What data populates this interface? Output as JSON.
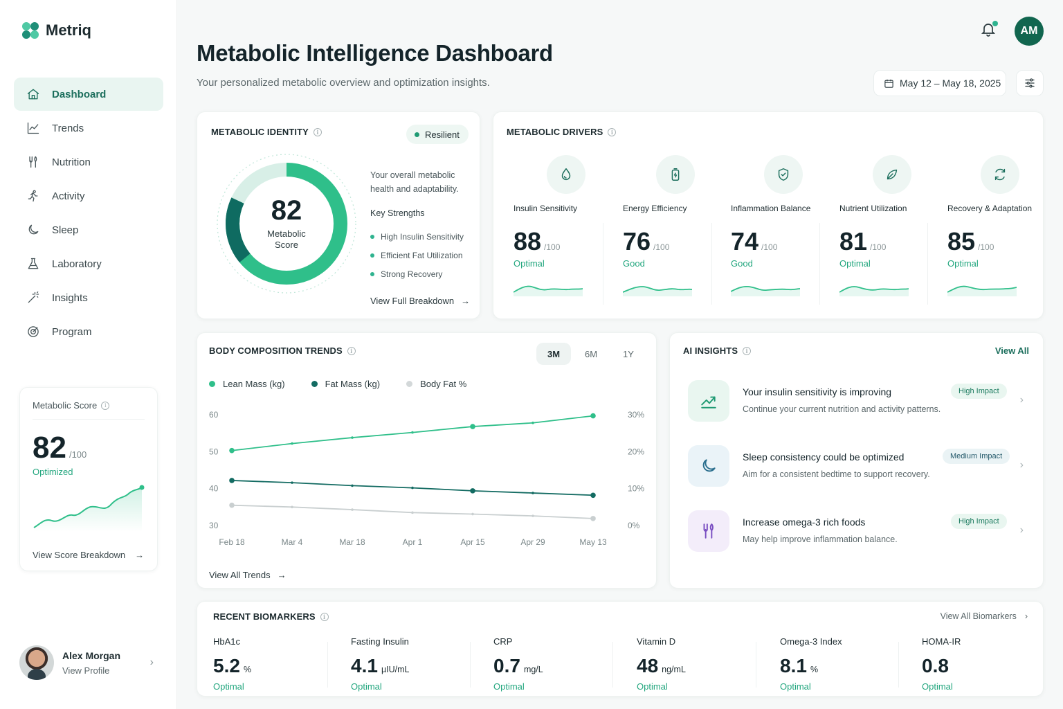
{
  "app": {
    "name": "Metriq"
  },
  "nav": [
    {
      "label": "Dashboard",
      "icon": "home-icon",
      "active": true
    },
    {
      "label": "Trends",
      "icon": "trend-chart-icon"
    },
    {
      "label": "Nutrition",
      "icon": "fork-knife-icon"
    },
    {
      "label": "Activity",
      "icon": "running-icon"
    },
    {
      "label": "Sleep",
      "icon": "moon-icon"
    },
    {
      "label": "Laboratory",
      "icon": "flask-icon"
    },
    {
      "label": "Insights",
      "icon": "magic-wand-icon"
    },
    {
      "label": "Program",
      "icon": "target-icon"
    }
  ],
  "sidebar_score": {
    "title": "Metabolic Score",
    "value": "82",
    "denominator": "/100",
    "status": "Optimized",
    "link": "View Score Breakdown"
  },
  "profile": {
    "name": "Alex Morgan",
    "sub": "View Profile"
  },
  "header": {
    "title": "Metabolic Intelligence Dashboard",
    "subtitle": "Your personalized metabolic overview and optimization insights.",
    "avatar_initials": "AM",
    "date_range": "May 12 – May 18, 2025"
  },
  "identity": {
    "title": "METABOLIC IDENTITY",
    "badge": "Resilient",
    "score": "82",
    "score_label": "Metabolic Score",
    "score_fraction": 0.82,
    "description": "Your overall metabolic health and adaptability.",
    "strengths_title": "Key Strengths",
    "strengths": [
      "High Insulin Sensitivity",
      "Efficient Fat Utilization",
      "Strong Recovery"
    ],
    "link": "View Full Breakdown"
  },
  "drivers": {
    "title": "METABOLIC DRIVERS",
    "items": [
      {
        "name": "Insulin Sensitivity",
        "value": "88",
        "den": "/100",
        "status": "Optimal",
        "icon": "droplet-icon"
      },
      {
        "name": "Energy Efficiency",
        "value": "76",
        "den": "/100",
        "status": "Good",
        "icon": "battery-icon"
      },
      {
        "name": "Inflammation Balance",
        "value": "74",
        "den": "/100",
        "status": "Good",
        "icon": "shield-icon"
      },
      {
        "name": "Nutrient Utilization",
        "value": "81",
        "den": "/100",
        "status": "Optimal",
        "icon": "leaf-icon"
      },
      {
        "name": "Recovery & Adaptation",
        "value": "85",
        "den": "/100",
        "status": "Optimal",
        "icon": "refresh-icon"
      }
    ]
  },
  "body_comp": {
    "title": "BODY COMPOSITION TRENDS",
    "tabs": [
      "3M",
      "6M",
      "1Y"
    ],
    "active_tab": "3M",
    "link": "View All Trends"
  },
  "chart_data": {
    "type": "line",
    "x": [
      "Feb 18",
      "Mar 4",
      "Mar 18",
      "Apr 1",
      "Apr 15",
      "Apr 29",
      "May 13"
    ],
    "y_left_ticks": [
      "60",
      "50",
      "40",
      "30"
    ],
    "y_right_ticks": [
      "30%",
      "20%",
      "10%",
      "0%"
    ],
    "ylim": [
      30,
      60
    ],
    "y2lim": [
      0,
      30
    ],
    "legend_position": "top-left",
    "grid": false,
    "series": [
      {
        "name": "Lean Mass (kg)",
        "axis": "left",
        "color": "#2fbf8a",
        "values": [
          50.3,
          52.2,
          53.8,
          55.2,
          56.8,
          57.8,
          59.7
        ],
        "marker_idx": [
          0,
          4,
          6
        ]
      },
      {
        "name": "Fat Mass (kg)",
        "axis": "left",
        "color": "#136b62",
        "values": [
          42.2,
          41.6,
          40.8,
          40.2,
          39.4,
          38.8,
          38.2
        ],
        "marker_idx": [
          0,
          4,
          6
        ]
      },
      {
        "name": "Body Fat %",
        "axis": "right",
        "color": "#c9cfd0",
        "values": [
          5.5,
          5.0,
          4.3,
          3.5,
          3.1,
          2.6,
          1.9
        ],
        "marker_idx": [
          0,
          6
        ]
      }
    ]
  },
  "insights": {
    "title": "AI INSIGHTS",
    "view_all": "View All",
    "items": [
      {
        "title": "Your insulin sensitivity is improving",
        "desc": "Continue your current nutrition and activity patterns.",
        "badge": "High Impact",
        "icon": "trend-up-icon",
        "tone": "green"
      },
      {
        "title": "Sleep consistency could be optimized",
        "desc": "Aim for a consistent bedtime to support recovery.",
        "badge": "Medium Impact",
        "icon": "moon-icon",
        "tone": "blue"
      },
      {
        "title": "Increase omega-3 rich foods",
        "desc": "May help improve inflammation balance.",
        "badge": "High Impact",
        "icon": "fork-knife-icon",
        "tone": "purple"
      }
    ]
  },
  "biomarkers": {
    "title": "RECENT BIOMARKERS",
    "view_all": "View All Biomarkers",
    "items": [
      {
        "name": "HbA1c",
        "value": "5.2",
        "unit": "%",
        "status": "Optimal"
      },
      {
        "name": "Fasting Insulin",
        "value": "4.1",
        "unit": "µIU/mL",
        "status": "Optimal"
      },
      {
        "name": "CRP",
        "value": "0.7",
        "unit": "mg/L",
        "status": "Optimal"
      },
      {
        "name": "Vitamin D",
        "value": "48",
        "unit": "ng/mL",
        "status": "Optimal"
      },
      {
        "name": "Omega-3 Index",
        "value": "8.1",
        "unit": "%",
        "status": "Optimal"
      },
      {
        "name": "HOMA-IR",
        "value": "0.8",
        "unit": "",
        "status": "Optimal"
      }
    ]
  }
}
